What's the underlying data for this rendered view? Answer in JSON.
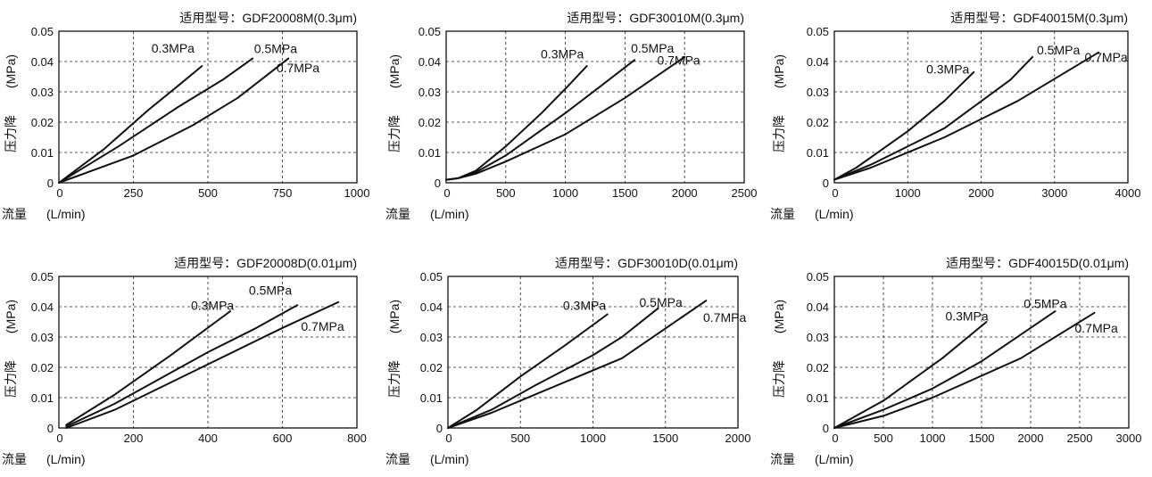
{
  "chart_data": [
    {
      "type": "line",
      "title": "适用型号：GDF20008M(0.3μm)",
      "xlabel": "流量",
      "xunit": "(L/min)",
      "ylabel": "压力降",
      "yunit": "(MPa)",
      "xlim": [
        0,
        1000
      ],
      "ylim": [
        0,
        0.05
      ],
      "xticks": [
        "0",
        "250",
        "500",
        "750",
        "1000"
      ],
      "yticks": [
        "0",
        "0.01",
        "0.02",
        "0.03",
        "0.04",
        "0.05"
      ],
      "grid": true,
      "series": [
        {
          "name": "0.3MPa",
          "x": [
            0,
            150,
            300,
            400,
            480
          ],
          "y": [
            0,
            0.011,
            0.024,
            0.032,
            0.0385
          ]
        },
        {
          "name": "0.5MPa",
          "x": [
            0,
            200,
            400,
            550,
            650
          ],
          "y": [
            0,
            0.012,
            0.025,
            0.034,
            0.041
          ]
        },
        {
          "name": "0.7MPa",
          "x": [
            0,
            250,
            450,
            600,
            770
          ],
          "y": [
            0,
            0.009,
            0.019,
            0.028,
            0.041
          ]
        }
      ]
    },
    {
      "type": "line",
      "title": "适用型号：GDF30010M(0.3μm)",
      "xlabel": "流量",
      "xunit": "(L/min)",
      "ylabel": "压力降",
      "yunit": "(MPa)",
      "xlim": [
        0,
        2500
      ],
      "ylim": [
        0,
        0.05
      ],
      "xticks": [
        "0",
        "500",
        "1000",
        "1500",
        "2000",
        "2500"
      ],
      "yticks": [
        "0",
        "0.01",
        "0.02",
        "0.03",
        "0.04",
        "0.05"
      ],
      "grid": true,
      "series": [
        {
          "name": "0.3MPa",
          "x": [
            0,
            100,
            250,
            500,
            800,
            1000,
            1180
          ],
          "y": [
            0.001,
            0.0015,
            0.004,
            0.012,
            0.023,
            0.031,
            0.0385
          ]
        },
        {
          "name": "0.5MPa",
          "x": [
            0,
            100,
            250,
            500,
            750,
            1000,
            1300,
            1580
          ],
          "y": [
            0.001,
            0.0015,
            0.0035,
            0.009,
            0.016,
            0.023,
            0.032,
            0.0405
          ]
        },
        {
          "name": "0.7MPa",
          "x": [
            0,
            100,
            250,
            500,
            1000,
            1500,
            2000
          ],
          "y": [
            0.001,
            0.0015,
            0.003,
            0.007,
            0.016,
            0.028,
            0.0415
          ]
        }
      ]
    },
    {
      "type": "line",
      "title": "适用型号：GDF40015M(0.3μm)",
      "xlabel": "流量",
      "xunit": "(L/min)",
      "ylabel": "压力降",
      "yunit": "(MPa)",
      "xlim": [
        0,
        4000
      ],
      "ylim": [
        0,
        0.05
      ],
      "xticks": [
        "0",
        "1000",
        "2000",
        "3000",
        "4000"
      ],
      "yticks": [
        "0",
        "0.01",
        "0.02",
        "0.03",
        "0.04",
        "0.05"
      ],
      "grid": true,
      "series": [
        {
          "name": "0.3MPa",
          "x": [
            0,
            300,
            1000,
            1500,
            1900
          ],
          "y": [
            0.001,
            0.005,
            0.017,
            0.027,
            0.0365
          ]
        },
        {
          "name": "0.5MPa",
          "x": [
            0,
            500,
            1500,
            2400,
            2700
          ],
          "y": [
            0.001,
            0.006,
            0.018,
            0.034,
            0.0415
          ]
        },
        {
          "name": "0.7MPa",
          "x": [
            0,
            500,
            1500,
            2500,
            3600
          ],
          "y": [
            0.001,
            0.005,
            0.015,
            0.027,
            0.043
          ]
        }
      ]
    },
    {
      "type": "line",
      "title": "适用型号：GDF20008D(0.01μm)",
      "xlabel": "流量",
      "xunit": "(L/min)",
      "ylabel": "压力降",
      "yunit": "(MPa)",
      "xlim": [
        0,
        800
      ],
      "ylim": [
        0,
        0.05
      ],
      "xticks": [
        "0",
        "200",
        "400",
        "600",
        "800"
      ],
      "yticks": [
        "0",
        "0.01",
        "0.02",
        "0.03",
        "0.04",
        "0.05"
      ],
      "grid": true,
      "series": [
        {
          "name": "0.3MPa",
          "x": [
            20,
            150,
            300,
            460
          ],
          "y": [
            0.001,
            0.011,
            0.024,
            0.0385
          ]
        },
        {
          "name": "0.5MPa",
          "x": [
            20,
            150,
            400,
            530,
            640
          ],
          "y": [
            0.0005,
            0.008,
            0.025,
            0.033,
            0.0405
          ]
        },
        {
          "name": "0.7MPa",
          "x": [
            20,
            150,
            400,
            600,
            750
          ],
          "y": [
            0,
            0.006,
            0.021,
            0.033,
            0.0415
          ]
        }
      ]
    },
    {
      "type": "line",
      "title": "适用型号：GDF30010D(0.01μm)",
      "xlabel": "流量",
      "xunit": "(L/min)",
      "ylabel": "压力降",
      "yunit": "(MPa)",
      "xlim": [
        0,
        2000
      ],
      "ylim": [
        0,
        0.05
      ],
      "xticks": [
        "0",
        "500",
        "1000",
        "1500",
        "2000"
      ],
      "yticks": [
        "0",
        "0.01",
        "0.02",
        "0.03",
        "0.04",
        "0.05"
      ],
      "grid": true,
      "series": [
        {
          "name": "0.3MPa",
          "x": [
            0,
            200,
            500,
            800,
            1100
          ],
          "y": [
            0,
            0.006,
            0.017,
            0.027,
            0.0375
          ]
        },
        {
          "name": "0.5MPa",
          "x": [
            0,
            300,
            600,
            1000,
            1200,
            1450
          ],
          "y": [
            0,
            0.006,
            0.014,
            0.024,
            0.03,
            0.0395
          ]
        },
        {
          "name": "0.7MPa",
          "x": [
            0,
            300,
            600,
            1200,
            1780
          ],
          "y": [
            0,
            0.005,
            0.011,
            0.023,
            0.042
          ]
        }
      ]
    },
    {
      "type": "line",
      "title": "适用型号：GDF40015D(0.01μm)",
      "xlabel": "流量",
      "xunit": "(L/min)",
      "ylabel": "压力降",
      "yunit": "(MPa)",
      "xlim": [
        0,
        3000
      ],
      "ylim": [
        0,
        0.05
      ],
      "xticks": [
        "0",
        "500",
        "1000",
        "1500",
        "2000",
        "2500",
        "3000"
      ],
      "yticks": [
        "0",
        "0.01",
        "0.02",
        "0.03",
        "0.04",
        "0.05"
      ],
      "grid": true,
      "series": [
        {
          "name": "0.3MPa",
          "x": [
            0,
            500,
            800,
            1100,
            1550
          ],
          "y": [
            0,
            0.009,
            0.016,
            0.023,
            0.035
          ]
        },
        {
          "name": "0.5MPa",
          "x": [
            0,
            500,
            1000,
            1500,
            2250
          ],
          "y": [
            0,
            0.006,
            0.013,
            0.022,
            0.0385
          ]
        },
        {
          "name": "0.7MPa",
          "x": [
            0,
            500,
            1000,
            1900,
            2650
          ],
          "y": [
            0,
            0.004,
            0.01,
            0.023,
            0.038
          ]
        }
      ]
    }
  ]
}
